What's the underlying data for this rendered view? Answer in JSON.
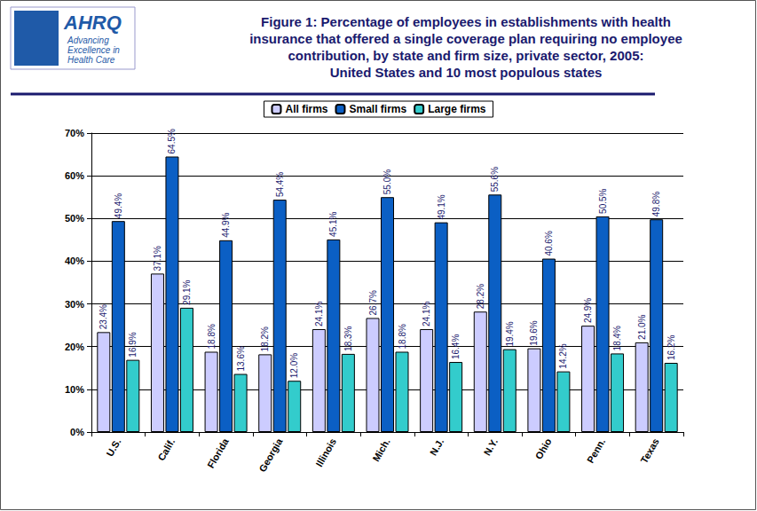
{
  "chart_data": {
    "type": "bar",
    "title": "Figure 1: Percentage of employees in establishments with health\ninsurance that offered a single coverage plan requiring no employee\ncontribution, by state and firm size, private sector, 2005:\nUnited States and 10 most populous states",
    "logo_text": [
      "AHRQ",
      "Advancing",
      "Excellence in",
      "Health Care"
    ],
    "categories": [
      "U.S.",
      "Calif.",
      "Florida",
      "Georgia",
      "Illinois",
      "Mich.",
      "N.J.",
      "N.Y.",
      "Ohio",
      "Penn.",
      "Texas"
    ],
    "series": [
      {
        "name": "All firms",
        "color": "#ccccff",
        "values": [
          23.4,
          37.1,
          18.8,
          18.2,
          24.1,
          26.7,
          24.1,
          28.2,
          19.6,
          24.9,
          21.0
        ],
        "value_labels": [
          "23.4%",
          "37.1%",
          "18.8%",
          "18.2%",
          "24.1%",
          "26.7%",
          "24.1%",
          "28.2%",
          "19.6%",
          "24.9%",
          "21.0%"
        ]
      },
      {
        "name": "Small firms",
        "color": "#0b5fc4",
        "values": [
          49.4,
          64.5,
          44.9,
          54.4,
          45.1,
          55.0,
          49.1,
          55.6,
          40.6,
          50.5,
          49.8
        ],
        "value_labels": [
          "49.4%",
          "64.5%",
          "44.9%",
          "54.4%",
          "45.1%",
          "55.0%",
          "49.1%",
          "55.6%",
          "40.6%",
          "50.5%",
          "49.8%"
        ]
      },
      {
        "name": "Large firms",
        "color": "#33cccc",
        "values": [
          16.9,
          29.1,
          13.6,
          12.0,
          18.3,
          18.8,
          16.4,
          19.4,
          14.2,
          18.4,
          16.2
        ],
        "value_labels": [
          "16.9%",
          "29.1%",
          "13.6%",
          "12.0%",
          "18.3%",
          "18.8%",
          "16.4%",
          "19.4%",
          "14.2%",
          "18.4%",
          "16.2%"
        ]
      }
    ],
    "ylim": [
      0,
      70
    ],
    "yticks": [
      {
        "value": 0,
        "label": "0%"
      },
      {
        "value": 10,
        "label": "10%"
      },
      {
        "value": 20,
        "label": "20%"
      },
      {
        "value": 30,
        "label": "30%"
      },
      {
        "value": 40,
        "label": "40%"
      },
      {
        "value": 50,
        "label": "50%"
      },
      {
        "value": 60,
        "label": "60%"
      },
      {
        "value": 70,
        "label": "70%"
      }
    ],
    "grid": true,
    "legend": "top",
    "data_labels": true
  }
}
